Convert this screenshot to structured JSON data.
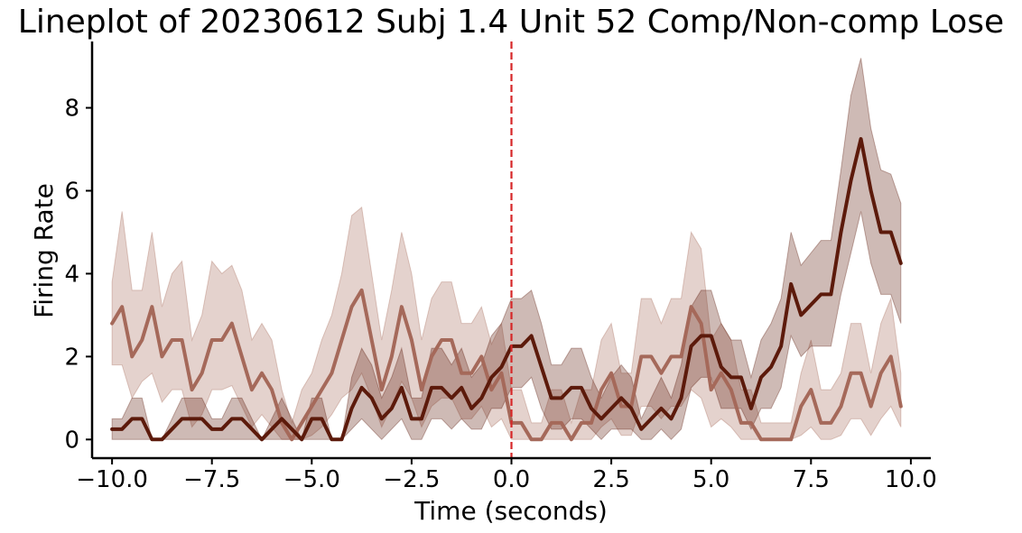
{
  "chart_data": {
    "type": "line",
    "title": "Lineplot of 20230612 Subj 1.4 Unit 52 Comp/Non-comp Lose",
    "xlabel": "Time (seconds)",
    "ylabel": "Firing Rate",
    "xlim": [
      -10.5,
      10.5
    ],
    "ylim": [
      -0.45,
      9.6
    ],
    "xticks": [
      -10,
      -7.5,
      -5,
      -2.5,
      0,
      2.5,
      5,
      7.5,
      10
    ],
    "xtick_labels": [
      "−10.0",
      "−7.5",
      "−5.0",
      "−2.5",
      "0.0",
      "2.5",
      "5.0",
      "7.5",
      "10.0"
    ],
    "yticks": [
      0,
      2,
      4,
      6,
      8
    ],
    "ytick_labels": [
      "0",
      "2",
      "4",
      "6",
      "8"
    ],
    "event_line": {
      "x": 0,
      "color": "#d62728",
      "style": "dashed"
    },
    "grid": false,
    "legend": "none",
    "series": [
      {
        "color": "#a5695a",
        "x": [
          -10,
          -9.75,
          -9.5,
          -9.25,
          -9,
          -8.75,
          -8.5,
          -8.25,
          -8,
          -7.75,
          -7.5,
          -7.25,
          -7,
          -6.75,
          -6.5,
          -6.25,
          -6,
          -5.75,
          -5.5,
          -5.25,
          -5,
          -4.75,
          -4.5,
          -4.25,
          -4,
          -3.75,
          -3.5,
          -3.25,
          -3,
          -2.75,
          -2.5,
          -2.25,
          -2,
          -1.75,
          -1.5,
          -1.25,
          -1,
          -0.75,
          -0.5,
          -0.25,
          0,
          0.25,
          0.5,
          0.75,
          1,
          1.25,
          1.5,
          1.75,
          2,
          2.25,
          2.5,
          2.75,
          3,
          3.25,
          3.5,
          3.75,
          4,
          4.25,
          4.5,
          4.75,
          5,
          5.25,
          5.5,
          5.75,
          6,
          6.25,
          6.5,
          6.75,
          7,
          7.25,
          7.5,
          7.75,
          8,
          8.25,
          8.5,
          8.75,
          9,
          9.25,
          9.5,
          9.75
        ],
        "y": [
          2.8,
          3.2,
          2.0,
          2.4,
          3.2,
          2.0,
          2.4,
          2.4,
          1.2,
          1.6,
          2.4,
          2.4,
          2.8,
          2.0,
          1.2,
          1.6,
          1.2,
          0.4,
          0.0,
          0.4,
          0.8,
          1.2,
          1.6,
          2.4,
          3.2,
          3.6,
          2.4,
          1.2,
          2.0,
          3.2,
          2.4,
          1.2,
          2.0,
          2.4,
          2.4,
          1.6,
          1.6,
          2.0,
          1.2,
          1.6,
          0.4,
          0.4,
          0.0,
          0.0,
          0.4,
          0.4,
          0.0,
          0.4,
          0.4,
          1.2,
          1.6,
          0.8,
          0.8,
          2.0,
          2.0,
          1.6,
          2.0,
          2.0,
          3.2,
          2.8,
          1.2,
          1.6,
          1.2,
          0.4,
          0.4,
          0.0,
          0.0,
          0.0,
          0.0,
          0.8,
          1.2,
          0.4,
          0.4,
          0.8,
          1.6,
          1.6,
          0.8,
          1.6,
          2.0,
          0.8
        ],
        "lower": [
          1.8,
          1.8,
          1.0,
          1.4,
          1.6,
          0.9,
          1.2,
          1.2,
          0.3,
          0.6,
          1.2,
          1.2,
          1.3,
          0.8,
          0.3,
          0.6,
          0.3,
          0.0,
          0.0,
          0.0,
          0.1,
          0.3,
          0.6,
          1.0,
          1.2,
          1.6,
          1.0,
          0.3,
          0.8,
          1.4,
          1.0,
          0.3,
          0.8,
          1.0,
          1.0,
          0.5,
          0.5,
          0.8,
          0.3,
          0.5,
          0.0,
          0.0,
          0.0,
          0.0,
          0.0,
          0.0,
          0.0,
          0.0,
          0.0,
          0.3,
          0.5,
          0.1,
          0.1,
          0.8,
          0.8,
          0.5,
          0.8,
          0.8,
          1.2,
          1.0,
          0.3,
          0.5,
          0.3,
          0.0,
          0.0,
          0.0,
          0.0,
          0.0,
          0.0,
          0.1,
          0.3,
          0.0,
          0.0,
          0.1,
          0.5,
          0.5,
          0.1,
          0.5,
          0.8,
          0.3
        ],
        "upper": [
          3.8,
          5.5,
          3.6,
          3.6,
          5.0,
          3.2,
          4.0,
          4.3,
          2.4,
          3.0,
          4.3,
          4.0,
          4.2,
          3.6,
          2.4,
          2.8,
          2.4,
          1.2,
          0.4,
          1.2,
          1.6,
          2.4,
          3.0,
          4.0,
          5.4,
          5.6,
          4.0,
          2.4,
          3.6,
          5.0,
          4.0,
          2.4,
          3.4,
          3.8,
          3.8,
          2.8,
          2.8,
          3.2,
          2.3,
          2.8,
          1.2,
          1.2,
          0.4,
          0.4,
          1.2,
          1.2,
          0.4,
          1.2,
          1.2,
          2.4,
          2.8,
          1.6,
          1.6,
          3.4,
          3.4,
          2.8,
          3.4,
          3.4,
          5.0,
          4.6,
          2.4,
          2.8,
          2.4,
          1.2,
          1.2,
          0.4,
          0.4,
          0.4,
          0.4,
          1.6,
          2.4,
          1.2,
          1.2,
          1.6,
          2.8,
          2.8,
          1.6,
          2.8,
          3.4,
          1.6
        ]
      },
      {
        "color": "#5c1a0b",
        "x": [
          -10,
          -9.75,
          -9.5,
          -9.25,
          -9,
          -8.75,
          -8.5,
          -8.25,
          -8,
          -7.75,
          -7.5,
          -7.25,
          -7,
          -6.75,
          -6.5,
          -6.25,
          -6,
          -5.75,
          -5.5,
          -5.25,
          -5,
          -4.75,
          -4.5,
          -4.25,
          -4,
          -3.75,
          -3.5,
          -3.25,
          -3,
          -2.75,
          -2.5,
          -2.25,
          -2,
          -1.75,
          -1.5,
          -1.25,
          -1,
          -0.75,
          -0.5,
          -0.25,
          0,
          0.25,
          0.5,
          0.75,
          1,
          1.25,
          1.5,
          1.75,
          2,
          2.25,
          2.5,
          2.75,
          3,
          3.25,
          3.5,
          3.75,
          4,
          4.25,
          4.5,
          4.75,
          5,
          5.25,
          5.5,
          5.75,
          6,
          6.25,
          6.5,
          6.75,
          7,
          7.25,
          7.5,
          7.75,
          8,
          8.25,
          8.5,
          8.75,
          9,
          9.25,
          9.5,
          9.75
        ],
        "y": [
          0.25,
          0.25,
          0.5,
          0.5,
          0.0,
          0.0,
          0.25,
          0.5,
          0.5,
          0.5,
          0.25,
          0.25,
          0.5,
          0.5,
          0.25,
          0.0,
          0.25,
          0.5,
          0.25,
          0.0,
          0.5,
          0.5,
          0.0,
          0.0,
          0.75,
          1.25,
          1.0,
          0.5,
          0.75,
          1.25,
          0.5,
          0.5,
          1.25,
          1.25,
          1.0,
          1.25,
          0.75,
          1.0,
          1.5,
          1.75,
          2.25,
          2.25,
          2.5,
          1.75,
          1.0,
          1.0,
          1.25,
          1.25,
          0.75,
          0.5,
          0.75,
          1.0,
          0.75,
          0.25,
          0.5,
          0.75,
          0.5,
          1.0,
          2.25,
          2.5,
          2.5,
          1.75,
          1.5,
          1.5,
          0.75,
          1.5,
          1.75,
          2.25,
          3.75,
          3.0,
          3.25,
          3.5,
          3.5,
          5.0,
          6.25,
          7.25,
          6.0,
          5.0,
          5.0,
          4.25
        ],
        "lower": [
          0.0,
          0.0,
          0.0,
          0.0,
          0.0,
          0.0,
          0.0,
          0.0,
          0.0,
          0.0,
          0.0,
          0.0,
          0.0,
          0.0,
          0.0,
          0.0,
          0.0,
          0.0,
          0.0,
          0.0,
          0.0,
          0.0,
          0.0,
          0.0,
          0.25,
          0.5,
          0.25,
          0.0,
          0.25,
          0.5,
          0.0,
          0.0,
          0.5,
          0.5,
          0.25,
          0.5,
          0.25,
          0.25,
          0.75,
          0.75,
          1.25,
          1.25,
          1.5,
          0.75,
          0.25,
          0.25,
          0.5,
          0.5,
          0.25,
          0.0,
          0.25,
          0.25,
          0.25,
          0.0,
          0.0,
          0.25,
          0.0,
          0.25,
          1.25,
          1.5,
          1.5,
          0.75,
          0.75,
          0.75,
          0.25,
          0.75,
          0.75,
          1.25,
          2.5,
          2.0,
          2.25,
          2.25,
          2.25,
          3.5,
          4.5,
          5.5,
          4.25,
          3.5,
          3.5,
          2.8
        ],
        "upper": [
          0.5,
          0.5,
          1.0,
          1.0,
          0.0,
          0.0,
          0.5,
          1.0,
          1.0,
          1.0,
          0.5,
          0.5,
          1.0,
          1.0,
          0.5,
          0.0,
          0.5,
          1.0,
          0.5,
          0.0,
          1.0,
          1.0,
          0.0,
          0.0,
          1.5,
          2.2,
          1.8,
          1.0,
          1.5,
          2.2,
          1.0,
          1.0,
          2.2,
          2.2,
          1.8,
          2.2,
          1.5,
          1.8,
          2.5,
          2.8,
          3.4,
          3.4,
          3.6,
          2.8,
          1.8,
          1.8,
          2.2,
          2.2,
          1.5,
          1.0,
          1.5,
          1.8,
          1.5,
          0.5,
          1.0,
          1.5,
          1.0,
          1.8,
          3.2,
          3.6,
          3.6,
          2.8,
          2.4,
          2.4,
          1.5,
          2.4,
          2.8,
          3.4,
          5.0,
          4.2,
          4.5,
          4.8,
          4.8,
          6.5,
          8.3,
          9.2,
          7.5,
          6.5,
          6.4,
          5.7
        ]
      }
    ]
  }
}
